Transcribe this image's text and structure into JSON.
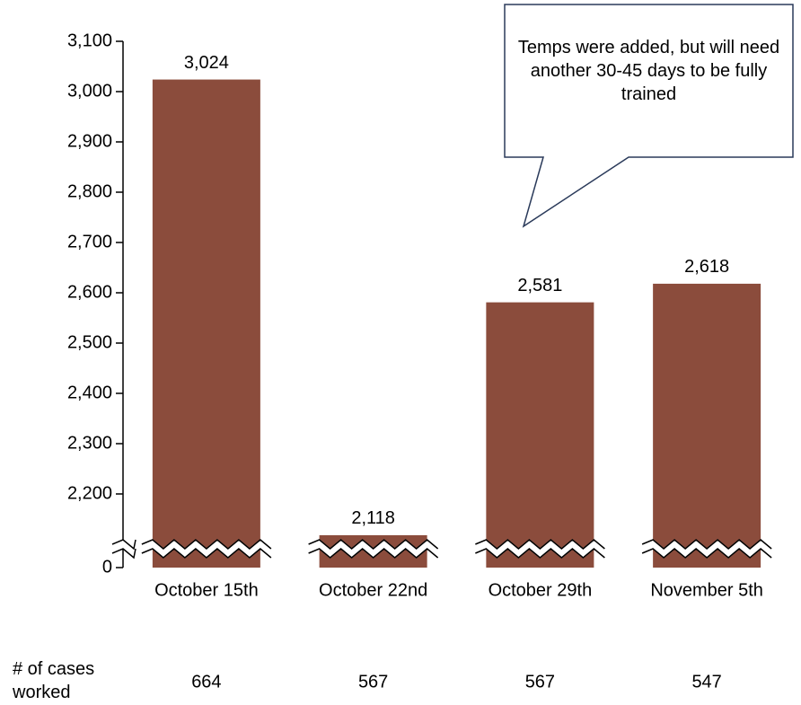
{
  "chart_data": {
    "type": "bar",
    "categories": [
      "October 15th",
      "October 22nd",
      "October 29th",
      "November 5th"
    ],
    "values": [
      3024,
      2118,
      2581,
      2618
    ],
    "value_labels": [
      "3,024",
      "2,118",
      "2,581",
      "2,618"
    ],
    "color": "#8b4c3c",
    "ylim": [
      0,
      3100
    ],
    "axis_break": [
      0,
      2100
    ],
    "yticks": [
      0,
      {
        "value": 2200,
        "label": "2,200"
      },
      {
        "value": 2300,
        "label": "2,300"
      },
      {
        "value": 2400,
        "label": "2,400"
      },
      {
        "value": 2500,
        "label": "2,500"
      },
      {
        "value": 2600,
        "label": "2,600"
      },
      {
        "value": 2700,
        "label": "2,700"
      },
      {
        "value": 2800,
        "label": "2,800"
      },
      {
        "value": 2900,
        "label": "2,900"
      },
      {
        "value": 3000,
        "label": "3,000"
      },
      {
        "value": 3100,
        "label": "3,100"
      }
    ],
    "annotation": "Temps were added, but will need another 30-45 days to be fully trained",
    "cases_worked": {
      "label": "# of cases worked",
      "values": [
        664,
        567,
        567,
        547
      ]
    }
  }
}
